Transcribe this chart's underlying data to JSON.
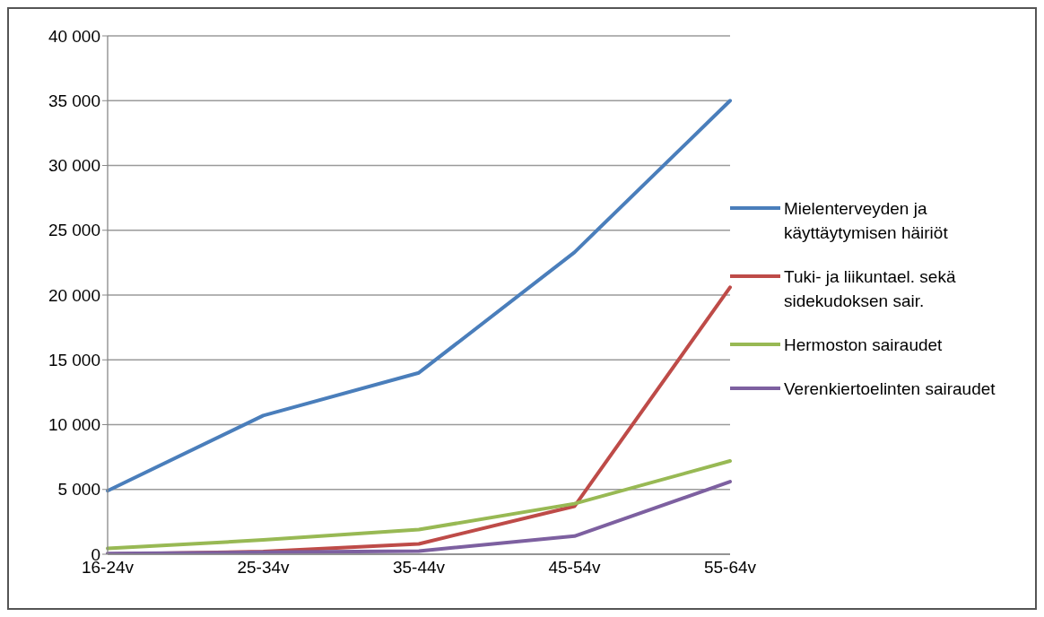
{
  "chart_data": {
    "type": "line",
    "categories": [
      "16-24v",
      "25-34v",
      "35-44v",
      "45-54v",
      "55-64v"
    ],
    "series": [
      {
        "name": "Mielenterveyden ja käyttäytymisen häiriöt",
        "color": "#4a7ebb",
        "values": [
          4900,
          10700,
          14000,
          23300,
          35000
        ]
      },
      {
        "name": "Tuki- ja liikuntael. sekä sidekudoksen sair.",
        "color": "#be4b48",
        "values": [
          0,
          200,
          800,
          3700,
          20600
        ]
      },
      {
        "name": "Hermoston sairaudet",
        "color": "#98b954",
        "values": [
          450,
          1100,
          1900,
          3900,
          7200
        ]
      },
      {
        "name": "Verenkiertoelinten sairaudet",
        "color": "#7d60a0",
        "values": [
          50,
          150,
          250,
          1400,
          5600
        ]
      }
    ],
    "ylim": [
      0,
      40000
    ],
    "yticks": [
      {
        "value": 0,
        "label": "0"
      },
      {
        "value": 5000,
        "label": "5 000"
      },
      {
        "value": 10000,
        "label": "10 000"
      },
      {
        "value": 15000,
        "label": "15 000"
      },
      {
        "value": 20000,
        "label": "20 000"
      },
      {
        "value": 25000,
        "label": "25 000"
      },
      {
        "value": 30000,
        "label": "30 000"
      },
      {
        "value": 35000,
        "label": "35 000"
      },
      {
        "value": 40000,
        "label": "40 000"
      }
    ],
    "grid": "y",
    "legend": "right",
    "marker": "none",
    "line_style": "solid"
  }
}
